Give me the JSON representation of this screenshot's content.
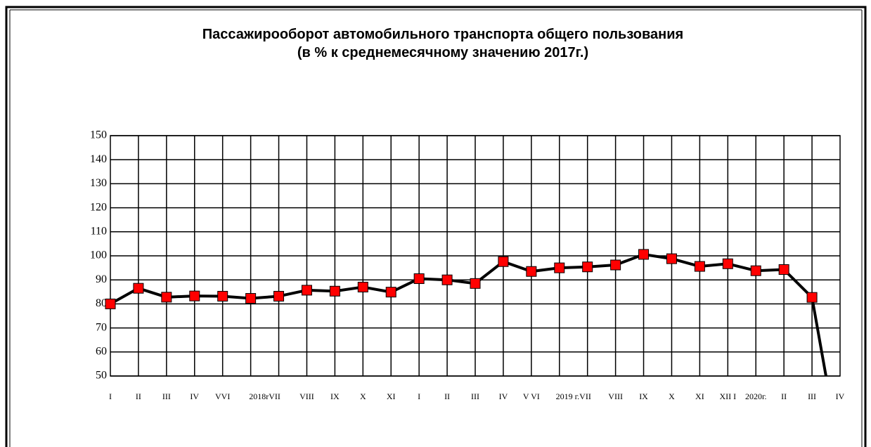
{
  "chart_data": {
    "type": "line",
    "title": "Пассажирооборот автомобильного транспорта общего пользования",
    "subtitle": "(в % к среднемесячному значению 2017г.)",
    "categories": [
      "I",
      "II",
      "III",
      "IV",
      "VVI",
      "2018rVII",
      null,
      "VIII",
      "IX",
      "X",
      "XI",
      "I",
      "II",
      "III",
      "IV",
      "V VI",
      "2019 г.VII",
      null,
      "VIII",
      "IX",
      "X",
      "XI",
      "XII I",
      "2020г.",
      "II",
      "III",
      "IV"
    ],
    "series": [
      {
        "name": "Пассажирооборот",
        "color": "#000000",
        "marker_color": "#ff0000",
        "values": [
          80,
          86.5,
          82.8,
          83.3,
          83.2,
          82.3,
          83.2,
          85.7,
          85.3,
          87,
          84.9,
          90.5,
          90,
          88.5,
          97.6,
          93.5,
          95,
          95.4,
          96.2,
          100.6,
          98.8,
          95.6,
          96.7,
          93.8,
          94.3,
          82.7,
          17
        ]
      }
    ],
    "ylim": [
      50,
      150
    ],
    "yticks": [
      50,
      60,
      70,
      80,
      90,
      100,
      110,
      120,
      130,
      140,
      150
    ],
    "grid": true
  }
}
